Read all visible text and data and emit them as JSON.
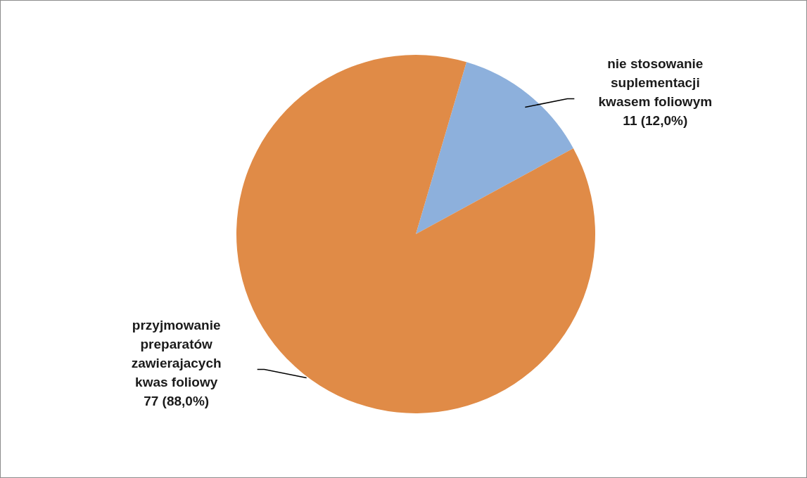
{
  "chart_data": {
    "type": "pie",
    "categories": [
      "nie stosowanie suplementacji kwasem foliowym",
      "przyjmowanie preparatów zawierajacych kwas foliowy"
    ],
    "values": [
      11,
      77
    ],
    "colors": [
      "#8db0dc",
      "#e08b47"
    ],
    "value_labels": [
      "11 (12,0%)",
      "77 (88,0%)"
    ]
  }
}
